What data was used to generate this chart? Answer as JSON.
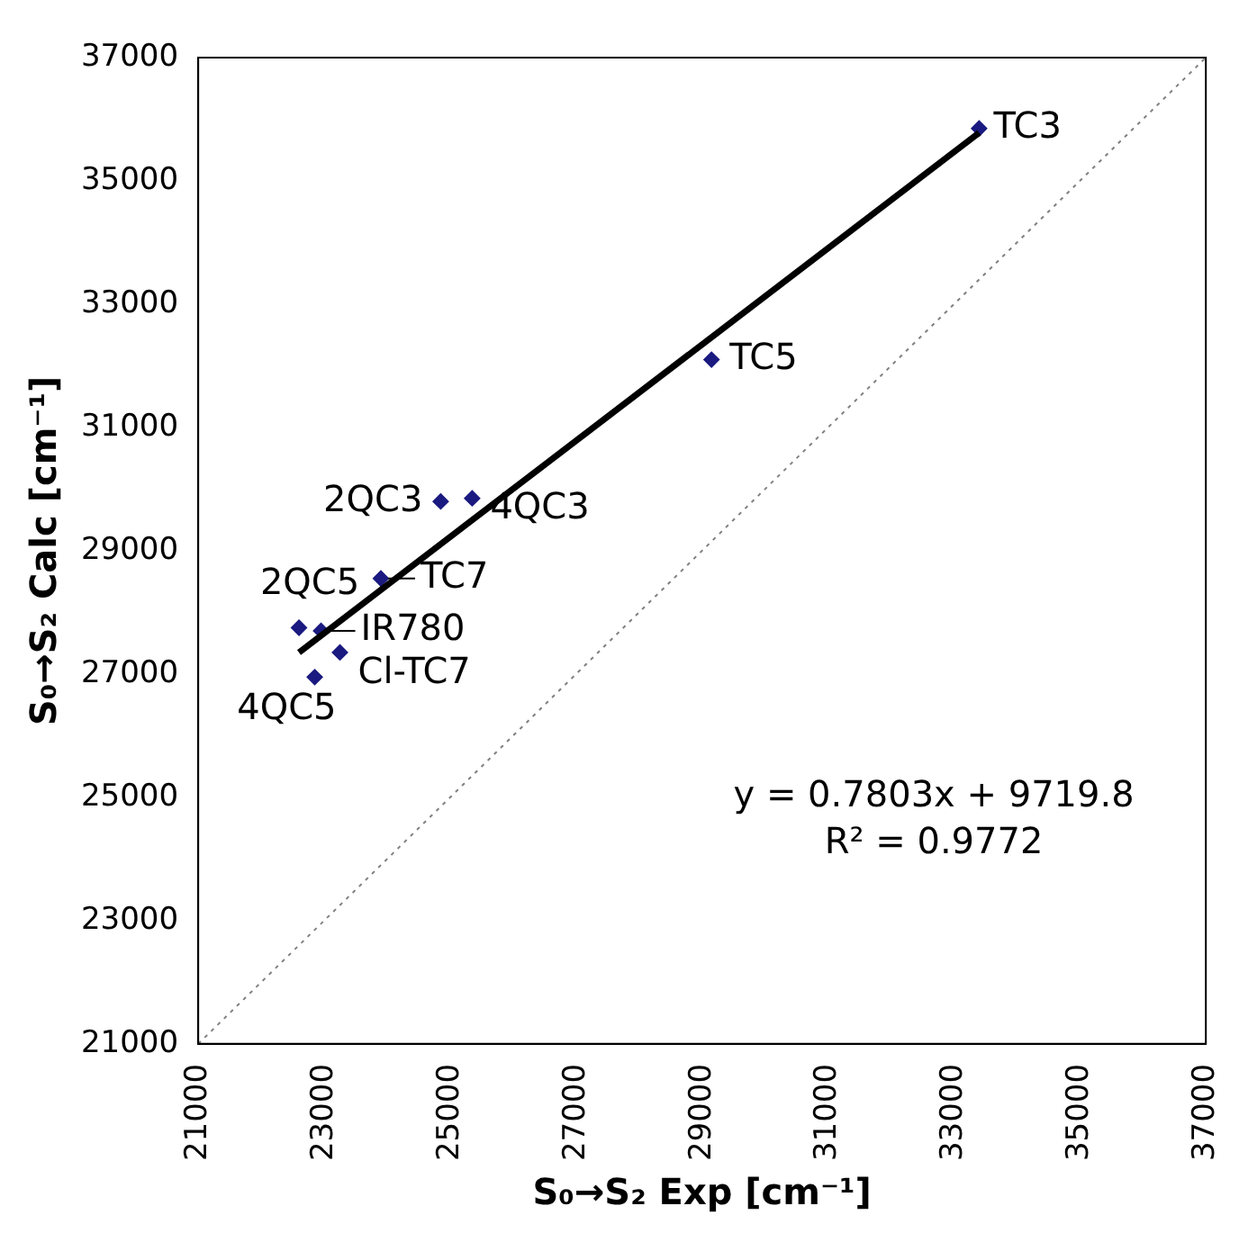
{
  "chart_data": {
    "type": "scatter",
    "xlabel": "S₀→S₂ Exp [cm⁻¹]",
    "ylabel": "S₀→S₂ Calc [cm⁻¹]",
    "xlim": [
      21000,
      37000
    ],
    "ylim": [
      21000,
      37000
    ],
    "xticks": [
      21000,
      23000,
      25000,
      27000,
      29000,
      31000,
      33000,
      35000,
      37000
    ],
    "yticks": [
      21000,
      23000,
      25000,
      27000,
      29000,
      31000,
      33000,
      35000,
      37000
    ],
    "grid": false,
    "legend": false,
    "marker": "diamond",
    "series": [
      {
        "color": "#1a1a80",
        "x": [
          33400,
          29150,
          24850,
          25350,
          23900,
          22600,
          22950,
          23250,
          22850
        ],
        "values": [
          35850,
          32100,
          29800,
          29850,
          28550,
          27750,
          27700,
          27350,
          26950
        ]
      },
      {
        "type": "line",
        "color": "#000000",
        "marker": "none",
        "line_style": "solid",
        "x": [
          22600,
          33400
        ],
        "values": [
          27350,
          35780
        ]
      },
      {
        "type": "line",
        "color": "#808080",
        "marker": "none",
        "line_style": "dotted",
        "x": [
          21000,
          37000
        ],
        "values": [
          21000,
          37000
        ]
      }
    ],
    "annotations": [
      {
        "text": "TC3",
        "x": 33400,
        "y": 35850
      },
      {
        "text": "TC5",
        "x": 29150,
        "y": 32100
      },
      {
        "text": "2QC3",
        "x": 24850,
        "y": 29800
      },
      {
        "text": "4QC3",
        "x": 25350,
        "y": 29850
      },
      {
        "text": "TC7",
        "x": 23900,
        "y": 28550
      },
      {
        "text": "2QC5",
        "x": 22600,
        "y": 27750
      },
      {
        "text": "IR780",
        "x": 22950,
        "y": 27700
      },
      {
        "text": "Cl-TC7",
        "x": 23250,
        "y": 27350
      },
      {
        "text": "4QC5",
        "x": 22850,
        "y": 26950
      },
      "y = 0.7803x + 9719.8",
      "R² = 0.9772"
    ]
  }
}
